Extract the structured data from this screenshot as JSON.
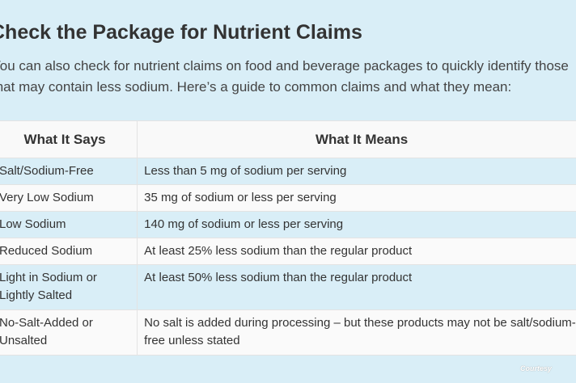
{
  "heading": "Check the Package for Nutrient Claims",
  "intro": {
    "line1": "You can also check for nutrient claims on food and beverage packages to quickly identify those",
    "line2": "that may contain less sodium. Here’s a guide to common claims and what they mean:"
  },
  "table": {
    "headers": [
      "What It Says",
      "What It Means"
    ],
    "rows": [
      {
        "says": "Salt/Sodium-Free",
        "means": "Less than 5 mg of sodium per serving"
      },
      {
        "says": "Very Low Sodium",
        "means": "35 mg of sodium or less per serving"
      },
      {
        "says": "Low Sodium",
        "means": "140 mg of sodium or less per serving"
      },
      {
        "says": "Reduced Sodium",
        "means": "At least 25% less sodium than the regular product"
      },
      {
        "says": "Light in Sodium or Lightly Salted",
        "means": "At least 50% less sodium than the regular product"
      },
      {
        "says": "No-Salt-Added or Unsalted",
        "means": "No salt is added during processing – but these products may not be salt/sodium-free unless stated"
      }
    ]
  },
  "credit": "Courtesy",
  "colors": {
    "background": "#d9eef7",
    "row_alt": "#d9eef7",
    "row_plain": "#fafafa",
    "text": "#333333"
  }
}
